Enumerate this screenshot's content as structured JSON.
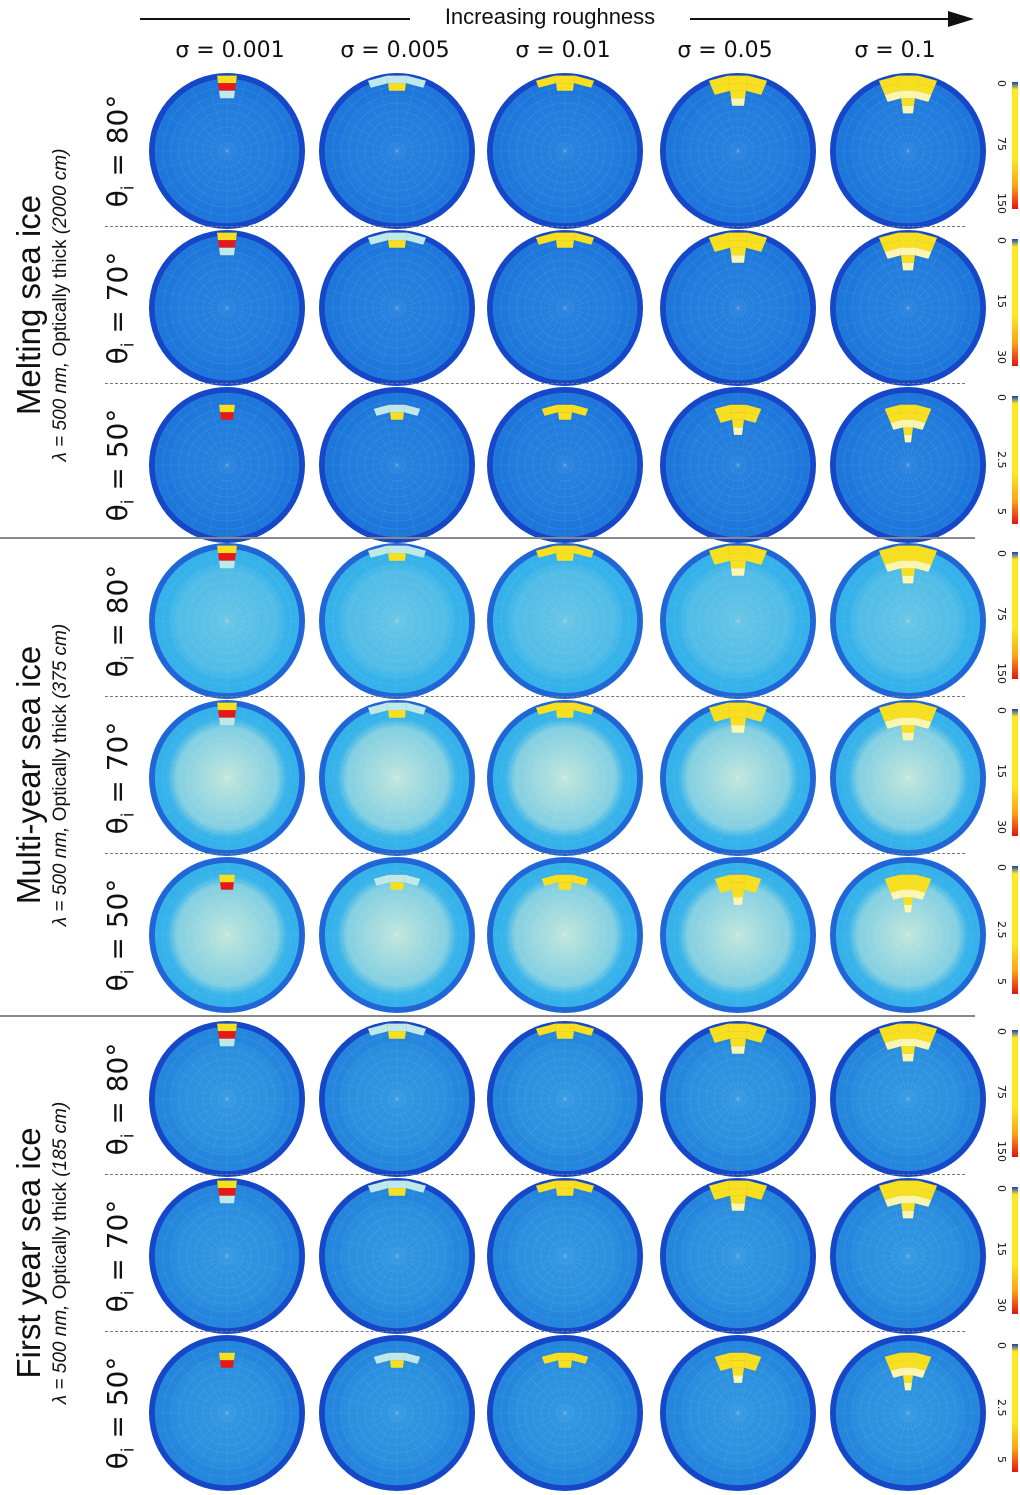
{
  "header": {
    "roughness_label": "Increasing roughness",
    "columns": [
      {
        "label": "σ =  0.001",
        "sigma": 0.001
      },
      {
        "label": "σ =  0.005",
        "sigma": 0.005
      },
      {
        "label": "σ =  0.01",
        "sigma": 0.01
      },
      {
        "label": "σ =  0.05",
        "sigma": 0.05
      },
      {
        "label": "σ =  0.1",
        "sigma": 0.1
      }
    ]
  },
  "groups": [
    {
      "title": "Melting sea ice",
      "subtitle_lambda": "λ = 500 nm,",
      "subtitle_rest": "Optically thick",
      "subtitle_thickness": "(2000 cm)",
      "ring_color": "#1448c8",
      "mid_color": "#1e78dc",
      "center_color": "#2a86de",
      "rows": [
        {
          "theta": "80°",
          "colorbar_ticks": [
            "0",
            "75",
            "150"
          ]
        },
        {
          "theta": "70°",
          "colorbar_ticks": [
            "0",
            "15",
            "30"
          ]
        },
        {
          "theta": "50°",
          "colorbar_ticks": [
            "0",
            "2.5",
            "5"
          ]
        }
      ]
    },
    {
      "title": "Multi-year sea ice",
      "subtitle_lambda": "λ = 500 nm,",
      "subtitle_rest": "Optically thick",
      "subtitle_thickness": "(375 cm)",
      "ring_color": "#1f66d6",
      "mid_color": "#35b2ea",
      "center_color": "#bfe6dc",
      "rows": [
        {
          "theta": "80°",
          "colorbar_ticks": [
            "0",
            "75",
            "150"
          ]
        },
        {
          "theta": "70°",
          "colorbar_ticks": [
            "0",
            "15",
            "30"
          ]
        },
        {
          "theta": "50°",
          "colorbar_ticks": [
            "0",
            "2.5",
            "5"
          ]
        }
      ]
    },
    {
      "title": "First year sea ice",
      "subtitle_lambda": "λ = 500 nm,",
      "subtitle_rest": "Optically thick",
      "subtitle_thickness": "(185 cm)",
      "ring_color": "#1448c8",
      "mid_color": "#2486dc",
      "center_color": "#3aa2e4",
      "rows": [
        {
          "theta": "80°",
          "colorbar_ticks": [
            "0",
            "75",
            "150"
          ]
        },
        {
          "theta": "70°",
          "colorbar_ticks": [
            "0",
            "15",
            "30"
          ]
        },
        {
          "theta": "50°",
          "colorbar_ticks": [
            "0",
            "2.5",
            "5"
          ]
        }
      ]
    }
  ],
  "theta_prefix": "θ",
  "theta_sub": "i",
  "theta_eq": " = ",
  "colors": {
    "peak_red": "#e81818",
    "peak_orange": "#f07a10",
    "peak_yellow": "#f8e020",
    "pale_yellow": "#fcf6b0",
    "pale_cyan": "#bfe8e8",
    "colorbar_red": "#e81010",
    "colorbar_yellow": "#ffe820",
    "colorbar_blue": "#1040c0"
  }
}
